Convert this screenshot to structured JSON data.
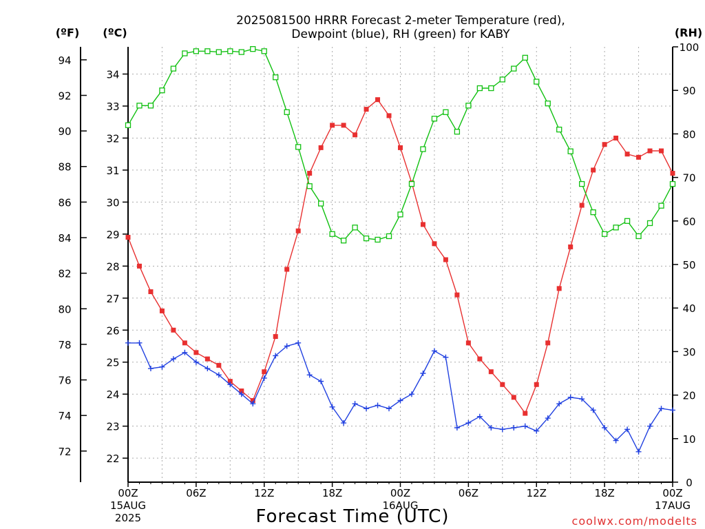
{
  "chart_data": {
    "type": "line",
    "title_line1": "2025081500 HRRR Forecast 2-meter Temperature (red),",
    "title_line2": "Dewpoint (blue), RH (green) for KABY",
    "xlabel": "Forecast Time (UTC)",
    "credit": "coolwx.com/modelts",
    "units": {
      "fahrenheit": "(ºF)",
      "celsius": "(ºC)",
      "rh": "(RH)"
    },
    "x_hours": [
      0,
      1,
      2,
      3,
      4,
      5,
      6,
      7,
      8,
      9,
      10,
      11,
      12,
      13,
      14,
      15,
      16,
      17,
      18,
      19,
      20,
      21,
      22,
      23,
      24,
      25,
      26,
      27,
      28,
      29,
      30,
      31,
      32,
      33,
      34,
      35,
      36,
      37,
      38,
      39,
      40,
      41,
      42,
      43,
      44,
      45,
      46,
      47,
      48
    ],
    "xlim": [
      0,
      48
    ],
    "x_ticks": [
      {
        "hour": 0,
        "lines": [
          "00Z",
          "15AUG",
          "2025"
        ]
      },
      {
        "hour": 6,
        "lines": [
          "06Z"
        ]
      },
      {
        "hour": 12,
        "lines": [
          "12Z"
        ]
      },
      {
        "hour": 18,
        "lines": [
          "18Z"
        ]
      },
      {
        "hour": 24,
        "lines": [
          "00Z",
          "16AUG"
        ]
      },
      {
        "hour": 30,
        "lines": [
          "06Z"
        ]
      },
      {
        "hour": 36,
        "lines": [
          "12Z"
        ]
      },
      {
        "hour": 42,
        "lines": [
          "18Z"
        ]
      },
      {
        "hour": 48,
        "lines": [
          "00Z",
          "17AUG"
        ]
      }
    ],
    "celsius_axis": {
      "ylim": [
        21.25,
        34.85
      ],
      "ticks": [
        22,
        23,
        24,
        25,
        26,
        27,
        28,
        29,
        30,
        31,
        32,
        33,
        34
      ]
    },
    "fahrenheit_axis": {
      "ticks": [
        72,
        74,
        76,
        78,
        80,
        82,
        84,
        86,
        88,
        90,
        92,
        94
      ]
    },
    "rh_axis": {
      "ylim": [
        0,
        100
      ],
      "ticks": [
        0,
        10,
        20,
        30,
        40,
        50,
        60,
        70,
        80,
        90,
        100
      ]
    },
    "series": [
      {
        "name": "Temperature",
        "color": "#e83030",
        "marker": "filled-square",
        "axis": "celsius",
        "values": [
          28.9,
          28.0,
          27.2,
          26.6,
          26.0,
          25.6,
          25.3,
          25.1,
          24.9,
          24.4,
          24.1,
          23.8,
          24.7,
          25.8,
          27.9,
          29.1,
          30.9,
          31.7,
          32.4,
          32.4,
          32.1,
          32.9,
          33.2,
          32.7,
          31.7,
          30.6,
          29.3,
          28.7,
          28.2,
          27.1,
          25.6,
          25.1,
          24.7,
          24.3,
          23.9,
          23.4,
          24.3,
          25.6,
          27.3,
          28.6,
          29.9,
          31.0,
          31.8,
          32.0,
          31.5,
          31.4,
          31.6,
          31.6,
          30.9
        ]
      },
      {
        "name": "Dewpoint",
        "color": "#2040e0",
        "marker": "plus",
        "axis": "celsius",
        "values": [
          25.6,
          25.6,
          24.8,
          24.85,
          25.1,
          25.3,
          25.0,
          24.8,
          24.6,
          24.3,
          24.0,
          23.7,
          24.5,
          25.2,
          25.5,
          25.6,
          24.6,
          24.4,
          23.6,
          23.1,
          23.7,
          23.55,
          23.65,
          23.55,
          23.8,
          24.0,
          24.65,
          25.35,
          25.15,
          22.95,
          23.1,
          23.3,
          22.95,
          22.9,
          22.95,
          23.0,
          22.85,
          23.25,
          23.7,
          23.9,
          23.85,
          23.5,
          22.95,
          22.55,
          22.9,
          22.2,
          23.0,
          23.55,
          23.5
        ]
      },
      {
        "name": "RH",
        "color": "#10c010",
        "marker": "open-square",
        "axis": "rh",
        "values": [
          82,
          86.5,
          86.5,
          90,
          95,
          98.5,
          99,
          99,
          98.8,
          99,
          98.8,
          99.5,
          99,
          93,
          85,
          77,
          68,
          64,
          57,
          55.5,
          58.5,
          56,
          55.7,
          56.5,
          61.5,
          68.5,
          76.5,
          83.5,
          85,
          80.5,
          86.5,
          90.5,
          90.5,
          92.5,
          95,
          97.5,
          92,
          87,
          81,
          76,
          68.5,
          62,
          57,
          58.5,
          60,
          56.5,
          59.5,
          63.5,
          68.5
        ]
      }
    ]
  }
}
